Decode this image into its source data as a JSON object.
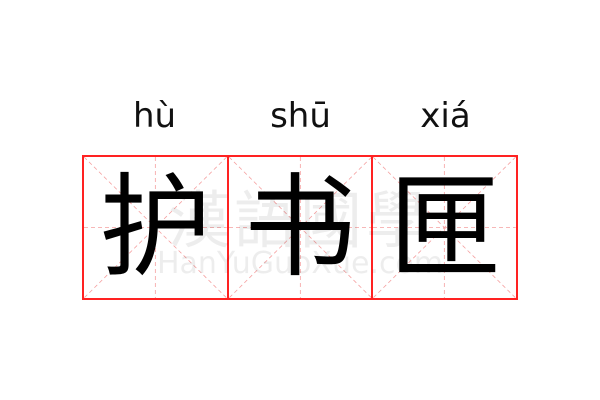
{
  "entries": [
    {
      "pinyin": "hù",
      "char": "护"
    },
    {
      "pinyin": "shū",
      "char": "书"
    },
    {
      "pinyin": "xiá",
      "char": "匣"
    }
  ],
  "watermark": {
    "cn": "漢語國學",
    "en": "HanYuGuoXue.com"
  },
  "colors": {
    "border": "#ff2222",
    "guide": "#f5a0a0"
  }
}
